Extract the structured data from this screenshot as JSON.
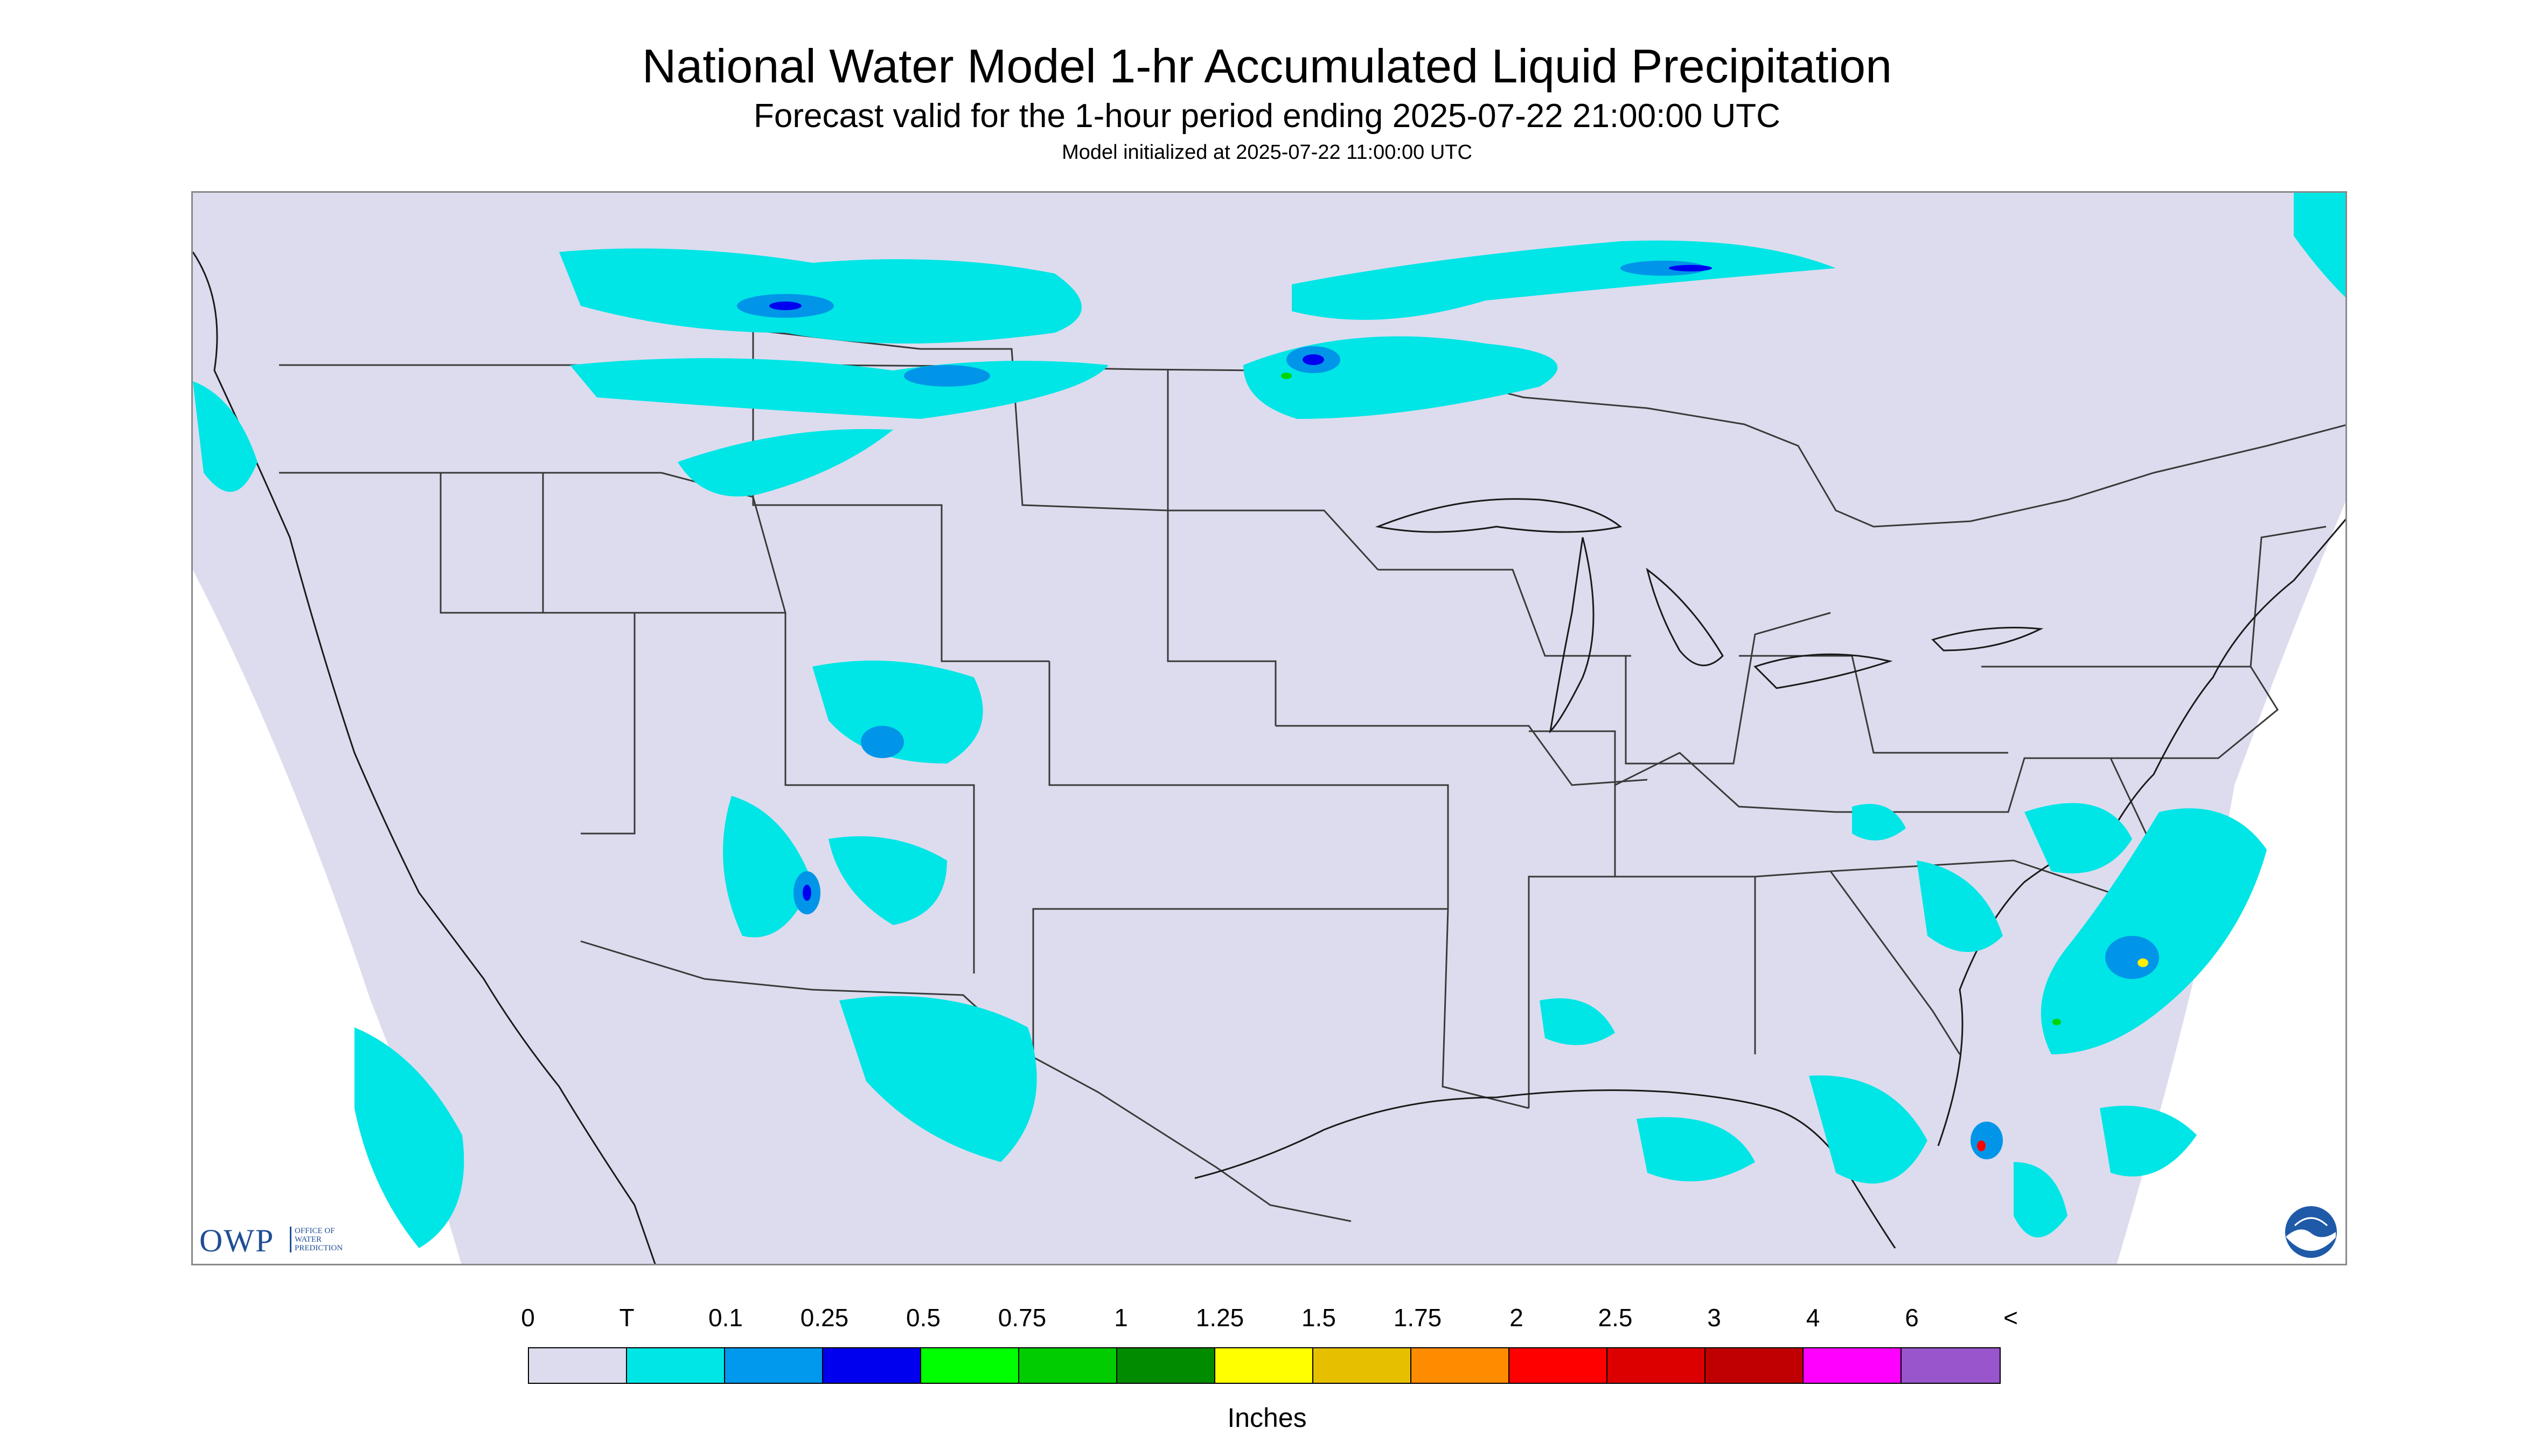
{
  "header": {
    "title": "National Water Model 1-hr Accumulated Liquid Precipitation",
    "subtitle": "Forecast valid for the 1-hour period ending 2025-07-22 21:00:00 UTC",
    "init_line": "Model initialized at 2025-07-22 11:00:00 UTC"
  },
  "map": {
    "background_color": "#dcdcee",
    "features": [
      "contiguous-united-states",
      "state-borders",
      "great-lakes",
      "gulf-of-mexico",
      "atlantic-ocean"
    ],
    "precip_colors": {
      "trace": "#00e5e5",
      "light": "#0095e8",
      "moderate": "#0000f0",
      "green": "#00d500",
      "yellow": "#ffee00",
      "red": "#ff0000"
    }
  },
  "logos": {
    "owp_text": "OWP",
    "owp_small": "OFFICE OF WATER PREDICTION",
    "noaa_text": "NOAA"
  },
  "legend": {
    "labels": [
      "0",
      "T",
      "0.1",
      "0.25",
      "0.5",
      "0.75",
      "1",
      "1.25",
      "1.5",
      "1.75",
      "2",
      "2.5",
      "3",
      "4",
      "6",
      "<"
    ],
    "colors": [
      "#dcdcee",
      "#00e6e6",
      "#0099ee",
      "#0000ee",
      "#00ff00",
      "#00cc00",
      "#008b00",
      "#ffff00",
      "#e6c000",
      "#ff8c00",
      "#ff0000",
      "#dd0000",
      "#c00000",
      "#ff00ff",
      "#9955cc"
    ],
    "units": "Inches"
  }
}
